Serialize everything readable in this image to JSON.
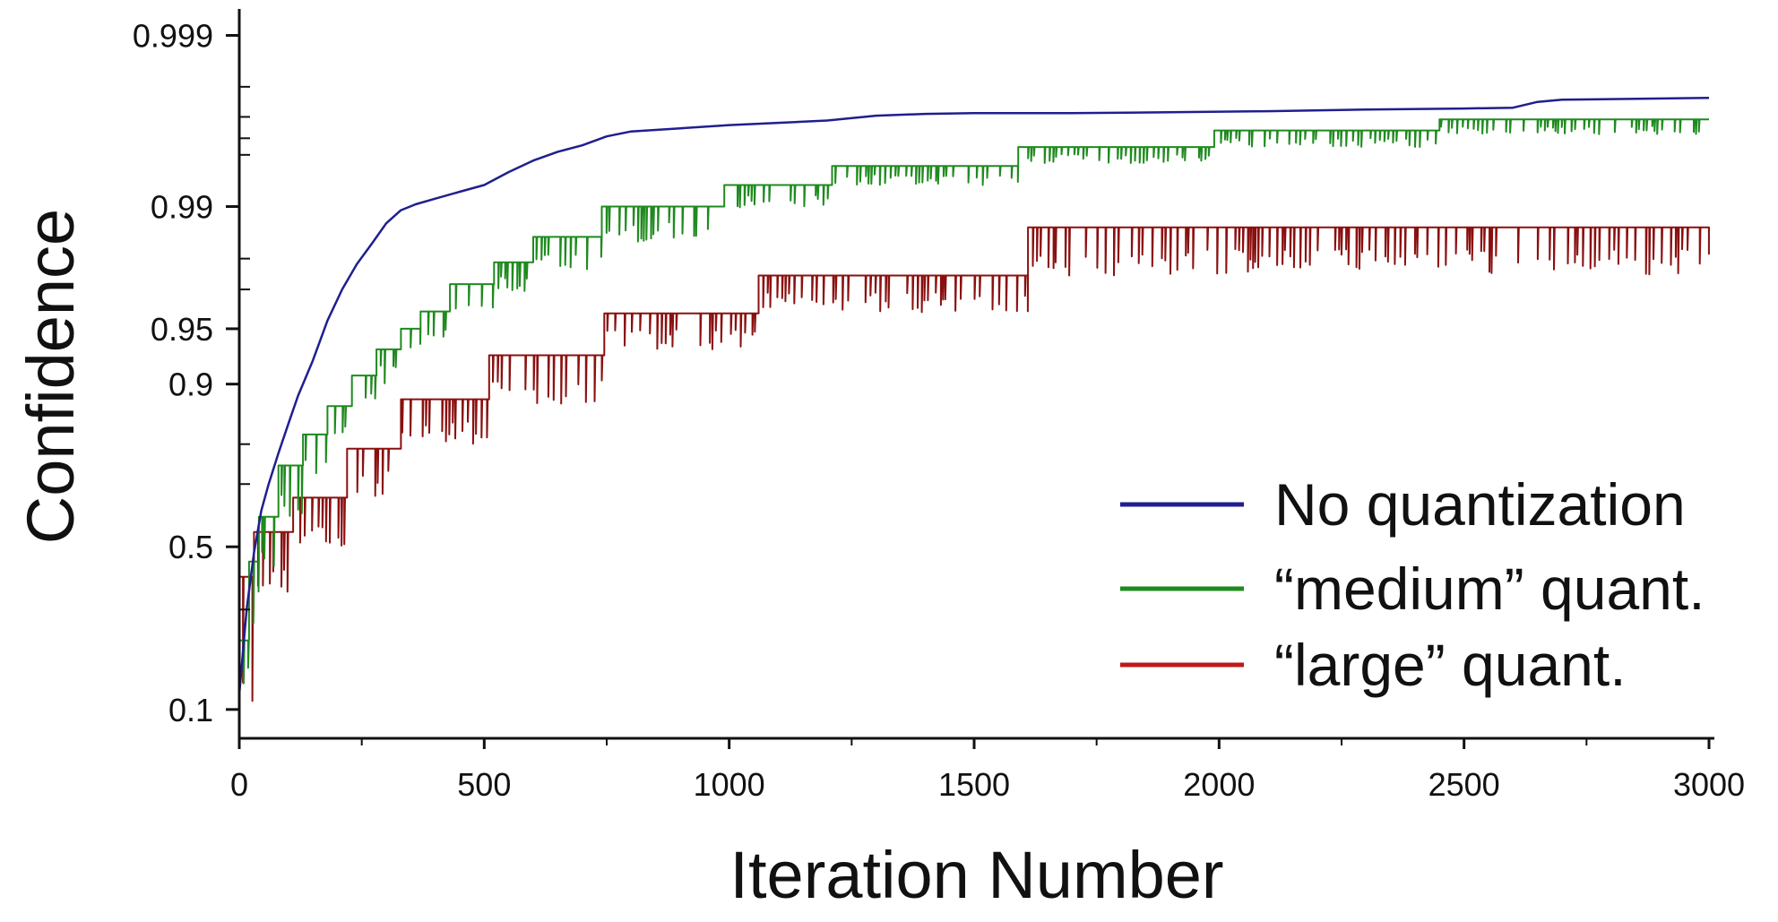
{
  "chart_data": {
    "type": "line",
    "title": "",
    "xlabel": "Iteration Number",
    "ylabel": "Confidence",
    "xlim": [
      0,
      3000
    ],
    "xticks": [
      0,
      500,
      1000,
      1500,
      2000,
      2500,
      3000
    ],
    "xtick_labels": [
      "0",
      "500",
      "1000",
      "1500",
      "2000",
      "2500",
      "3000"
    ],
    "yscale": "logit",
    "ylim": [
      0.07,
      0.9993
    ],
    "yticks": [
      0.1,
      0.5,
      0.9,
      0.95,
      0.99,
      0.999
    ],
    "ytick_labels": [
      "0.1",
      "0.5",
      "0.9",
      "0.95",
      "0.99",
      "0.999"
    ],
    "grid": false,
    "legend_position": "bottom-right",
    "series": [
      {
        "name": "No quantization",
        "color": "#1f1f8f",
        "style": "smooth",
        "x": [
          0,
          15,
          30,
          45,
          60,
          80,
          100,
          120,
          150,
          180,
          210,
          240,
          270,
          300,
          330,
          360,
          400,
          450,
          500,
          550,
          600,
          650,
          700,
          750,
          800,
          900,
          1000,
          1100,
          1200,
          1300,
          1400,
          1500,
          1700,
          1900,
          2100,
          2300,
          2500,
          2600,
          2650,
          2700,
          3000
        ],
        "y": [
          0.12,
          0.3,
          0.48,
          0.62,
          0.7,
          0.78,
          0.84,
          0.885,
          0.925,
          0.955,
          0.97,
          0.9785,
          0.9835,
          0.9875,
          0.9895,
          0.9903,
          0.991,
          0.9918,
          0.9925,
          0.9937,
          0.9946,
          0.9952,
          0.9956,
          0.9961,
          0.99635,
          0.9965,
          0.99665,
          0.99675,
          0.99685,
          0.99705,
          0.99712,
          0.99715,
          0.99715,
          0.99718,
          0.99722,
          0.99728,
          0.99732,
          0.99735,
          0.99755,
          0.99762,
          0.99768
        ]
      },
      {
        "name": "“medium” quant.",
        "color": "#1f8a1f",
        "style": "noisy-steps",
        "steps": [
          {
            "x0": 0,
            "x1": 20,
            "hi": 0.22,
            "lo": 0.12
          },
          {
            "x0": 20,
            "x1": 40,
            "hi": 0.45,
            "lo": 0.25
          },
          {
            "x0": 40,
            "x1": 80,
            "hi": 0.6,
            "lo": 0.42
          },
          {
            "x0": 80,
            "x1": 130,
            "hi": 0.75,
            "lo": 0.6
          },
          {
            "x0": 130,
            "x1": 180,
            "hi": 0.82,
            "lo": 0.7
          },
          {
            "x0": 180,
            "x1": 230,
            "hi": 0.87,
            "lo": 0.8
          },
          {
            "x0": 230,
            "x1": 280,
            "hi": 0.91,
            "lo": 0.86
          },
          {
            "x0": 280,
            "x1": 330,
            "hi": 0.935,
            "lo": 0.9
          },
          {
            "x0": 330,
            "x1": 370,
            "hi": 0.95,
            "lo": 0.925
          },
          {
            "x0": 370,
            "x1": 430,
            "hi": 0.96,
            "lo": 0.94
          },
          {
            "x0": 430,
            "x1": 520,
            "hi": 0.972,
            "lo": 0.958
          },
          {
            "x0": 520,
            "x1": 600,
            "hi": 0.979,
            "lo": 0.969
          },
          {
            "x0": 600,
            "x1": 740,
            "hi": 0.985,
            "lo": 0.977
          },
          {
            "x0": 740,
            "x1": 990,
            "hi": 0.99,
            "lo": 0.984
          },
          {
            "x0": 990,
            "x1": 1210,
            "hi": 0.9925,
            "lo": 0.9898
          },
          {
            "x0": 1210,
            "x1": 1590,
            "hi": 0.9942,
            "lo": 0.9925
          },
          {
            "x0": 1590,
            "x1": 1990,
            "hi": 0.9955,
            "lo": 0.9944
          },
          {
            "x0": 1990,
            "x1": 2450,
            "hi": 0.9964,
            "lo": 0.9955
          },
          {
            "x0": 2450,
            "x1": 3000,
            "hi": 0.9969,
            "lo": 0.9962
          }
        ]
      },
      {
        "name": "“large” quant.",
        "color": "#8a1010",
        "style": "noisy-steps",
        "steps": [
          {
            "x0": 0,
            "x1": 30,
            "hi": 0.4,
            "lo": 0.1
          },
          {
            "x0": 30,
            "x1": 110,
            "hi": 0.55,
            "lo": 0.35
          },
          {
            "x0": 110,
            "x1": 220,
            "hi": 0.66,
            "lo": 0.5
          },
          {
            "x0": 220,
            "x1": 330,
            "hi": 0.79,
            "lo": 0.66
          },
          {
            "x0": 330,
            "x1": 510,
            "hi": 0.88,
            "lo": 0.8
          },
          {
            "x0": 510,
            "x1": 745,
            "hi": 0.93,
            "lo": 0.87
          },
          {
            "x0": 745,
            "x1": 1060,
            "hi": 0.959,
            "lo": 0.935
          },
          {
            "x0": 1060,
            "x1": 1610,
            "hi": 0.975,
            "lo": 0.959
          },
          {
            "x0": 1610,
            "x1": 3000,
            "hi": 0.9868,
            "lo": 0.9749
          }
        ]
      }
    ]
  }
}
